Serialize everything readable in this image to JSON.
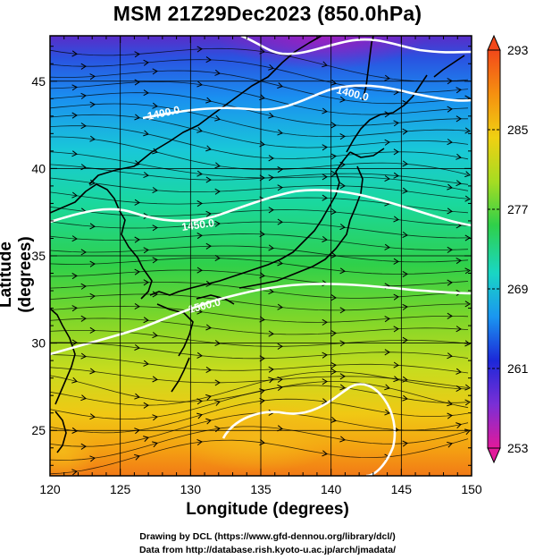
{
  "title": "MSM 21Z29Dec2023 (850.0hPa)",
  "x_axis": {
    "label": "Longitude (degrees)",
    "ticks": [
      "120",
      "125",
      "130",
      "135",
      "140",
      "145",
      "150"
    ],
    "range": [
      120,
      150
    ]
  },
  "y_axis": {
    "label": "Latitude  (degrees)",
    "ticks": [
      "25",
      "30",
      "35",
      "40",
      "45"
    ],
    "range": [
      22.4,
      47.6
    ]
  },
  "colorbar": {
    "ticks": [
      "293",
      "285",
      "277",
      "269",
      "261",
      "253"
    ],
    "range": [
      253,
      293
    ],
    "colors": [
      "#e2199a",
      "#7a2fd6",
      "#1c28d8",
      "#1a96f0",
      "#19d6c4",
      "#2fd04a",
      "#a6dc22",
      "#f0d012",
      "#f59010",
      "#f2481a"
    ]
  },
  "contours": [
    {
      "label": "1400.0",
      "lat_hint": 44
    },
    {
      "label": "1400.0",
      "lat_hint": 44.5
    },
    {
      "label": "1450.0",
      "lat_hint": 37.5
    },
    {
      "label": "1500.0",
      "lat_hint": 33.3
    }
  ],
  "footer": {
    "line1": "Drawing by DCL (https://www.gfd-dennou.org/library/dcl/)",
    "line2": "Data from http://database.rish.kyoto-u.ac.jp/arch/jmadata/"
  }
}
